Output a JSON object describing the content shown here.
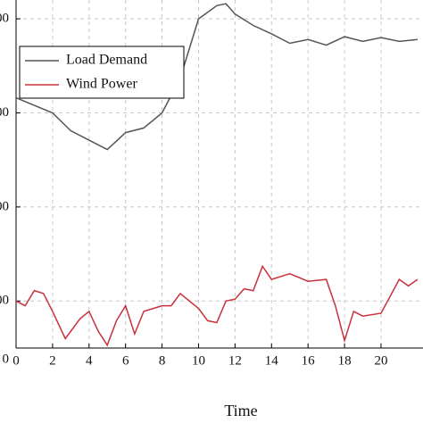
{
  "chart_data": {
    "type": "line",
    "x_label": "Time",
    "xlim": [
      0,
      22.3
    ],
    "xticks": [
      0,
      2,
      4,
      6,
      8,
      10,
      12,
      14,
      16,
      18,
      20
    ],
    "ylim": [
      50,
      420
    ],
    "yticks": [
      {
        "value": 50,
        "label": "0"
      },
      {
        "value": 100,
        "label": "00"
      },
      {
        "value": 200,
        "label": "00"
      },
      {
        "value": 300,
        "label": "00"
      },
      {
        "value": 400,
        "label": "00"
      }
    ],
    "grid": true,
    "legend": "top-left",
    "series": [
      {
        "name": "Load Demand",
        "color": "#555555",
        "x": [
          0,
          1,
          2,
          3,
          4,
          5,
          6,
          7,
          8,
          9,
          10,
          11,
          11.5,
          12,
          13,
          14,
          15,
          16,
          17,
          18,
          19,
          20,
          21,
          22
        ],
        "values": [
          316,
          308,
          300,
          281,
          271,
          261,
          279,
          284,
          300,
          337,
          400,
          414,
          416,
          405,
          393,
          384,
          374,
          378,
          372,
          381,
          376,
          380,
          376,
          378
        ]
      },
      {
        "name": "Wind Power",
        "color": "#c8323c",
        "x": [
          0,
          0.5,
          1,
          1.5,
          2,
          2.7,
          3.5,
          4,
          4.5,
          5,
          5.5,
          6,
          6.5,
          7,
          8,
          8.5,
          9,
          10,
          10.5,
          11,
          11.5,
          12,
          12.5,
          13,
          13.5,
          14,
          15,
          16,
          17,
          17.5,
          18,
          18.5,
          19,
          20,
          20.5,
          21,
          21.5,
          22
        ],
        "values": [
          100,
          95,
          111,
          108,
          89,
          60,
          81,
          89,
          68,
          53,
          79,
          95,
          65,
          89,
          95,
          95,
          108,
          92,
          79,
          77,
          100,
          102,
          113,
          111,
          137,
          123,
          129,
          121,
          123,
          95,
          58,
          89,
          84,
          87,
          105,
          123,
          116,
          123
        ]
      }
    ]
  }
}
